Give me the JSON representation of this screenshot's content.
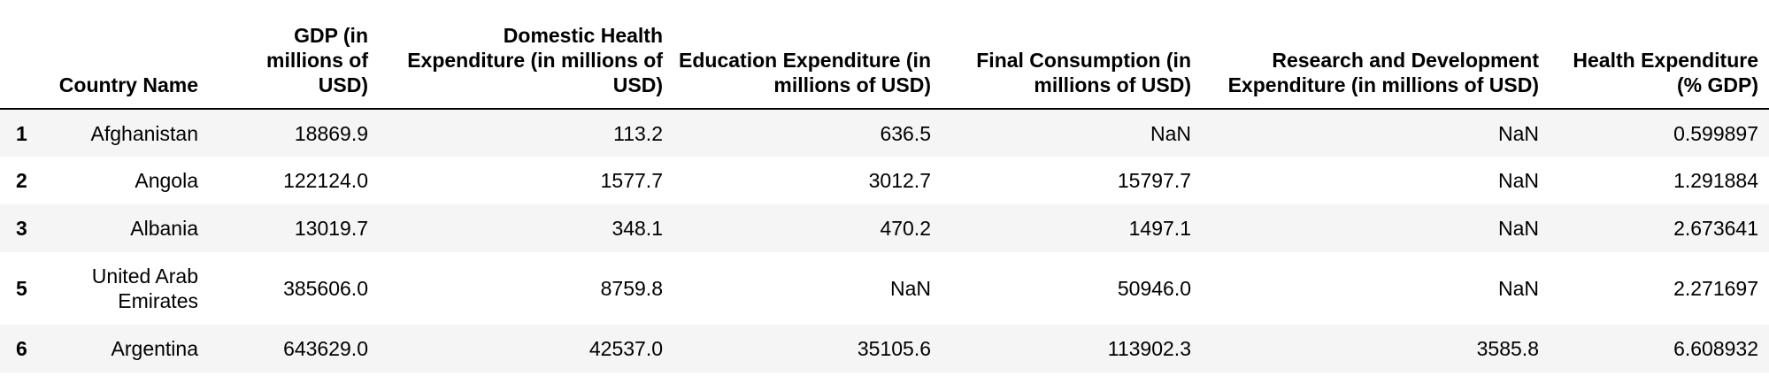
{
  "table": {
    "columns": [
      "",
      "Country Name",
      "GDP (in millions of USD)",
      "Domestic Health Expenditure (in millions of USD)",
      "Education Expenditure (in millions of USD)",
      "Final Consumption (in millions of USD)",
      "Research and Development Expenditure (in millions of USD)",
      "Health Expenditure (% GDP)"
    ],
    "rows": [
      {
        "index": "1",
        "cells": [
          "Afghanistan",
          "18869.9",
          "113.2",
          "636.5",
          "NaN",
          "NaN",
          "0.599897"
        ]
      },
      {
        "index": "2",
        "cells": [
          "Angola",
          "122124.0",
          "1577.7",
          "3012.7",
          "15797.7",
          "NaN",
          "1.291884"
        ]
      },
      {
        "index": "3",
        "cells": [
          "Albania",
          "13019.7",
          "348.1",
          "470.2",
          "1497.1",
          "NaN",
          "2.673641"
        ]
      },
      {
        "index": "5",
        "cells": [
          "United Arab Emirates",
          "385606.0",
          "8759.8",
          "NaN",
          "50946.0",
          "NaN",
          "2.271697"
        ]
      },
      {
        "index": "6",
        "cells": [
          "Argentina",
          "643629.0",
          "42537.0",
          "35105.6",
          "113902.3",
          "3585.8",
          "6.608932"
        ]
      }
    ]
  }
}
